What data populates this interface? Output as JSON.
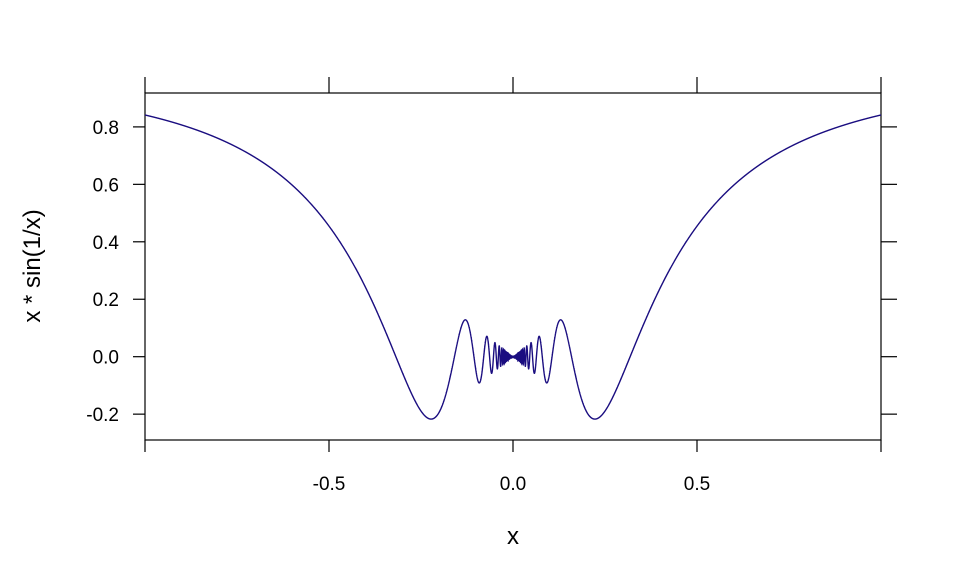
{
  "chart_data": {
    "type": "line",
    "title": "",
    "xlabel": "x",
    "ylabel": "x * sin(1/x)",
    "xlim": [
      -1,
      1
    ],
    "ylim": [
      -0.29,
      0.918
    ],
    "x_ticks": [
      -1,
      -0.5,
      0,
      0.5,
      1
    ],
    "x_tick_labels": [
      "",
      "-0.5",
      "0.0",
      "0.5",
      ""
    ],
    "y_ticks": [
      -0.2,
      0.0,
      0.2,
      0.4,
      0.6,
      0.8
    ],
    "y_tick_labels": [
      "-0.2",
      "0.0",
      "0.2",
      "0.4",
      "0.6",
      "0.8"
    ],
    "grid": false,
    "series": [
      {
        "function": "x * sin(1/x)",
        "x_range": [
          -1,
          1
        ],
        "color": "#1a0d80",
        "key_points": [
          [
            -1,
            0.841
          ],
          [
            -0.2225,
            -0.217
          ],
          [
            -0.13,
            0.128
          ],
          [
            0,
            0
          ],
          [
            0.13,
            0.128
          ],
          [
            0.2225,
            -0.217
          ],
          [
            1,
            0.841
          ]
        ]
      }
    ]
  }
}
